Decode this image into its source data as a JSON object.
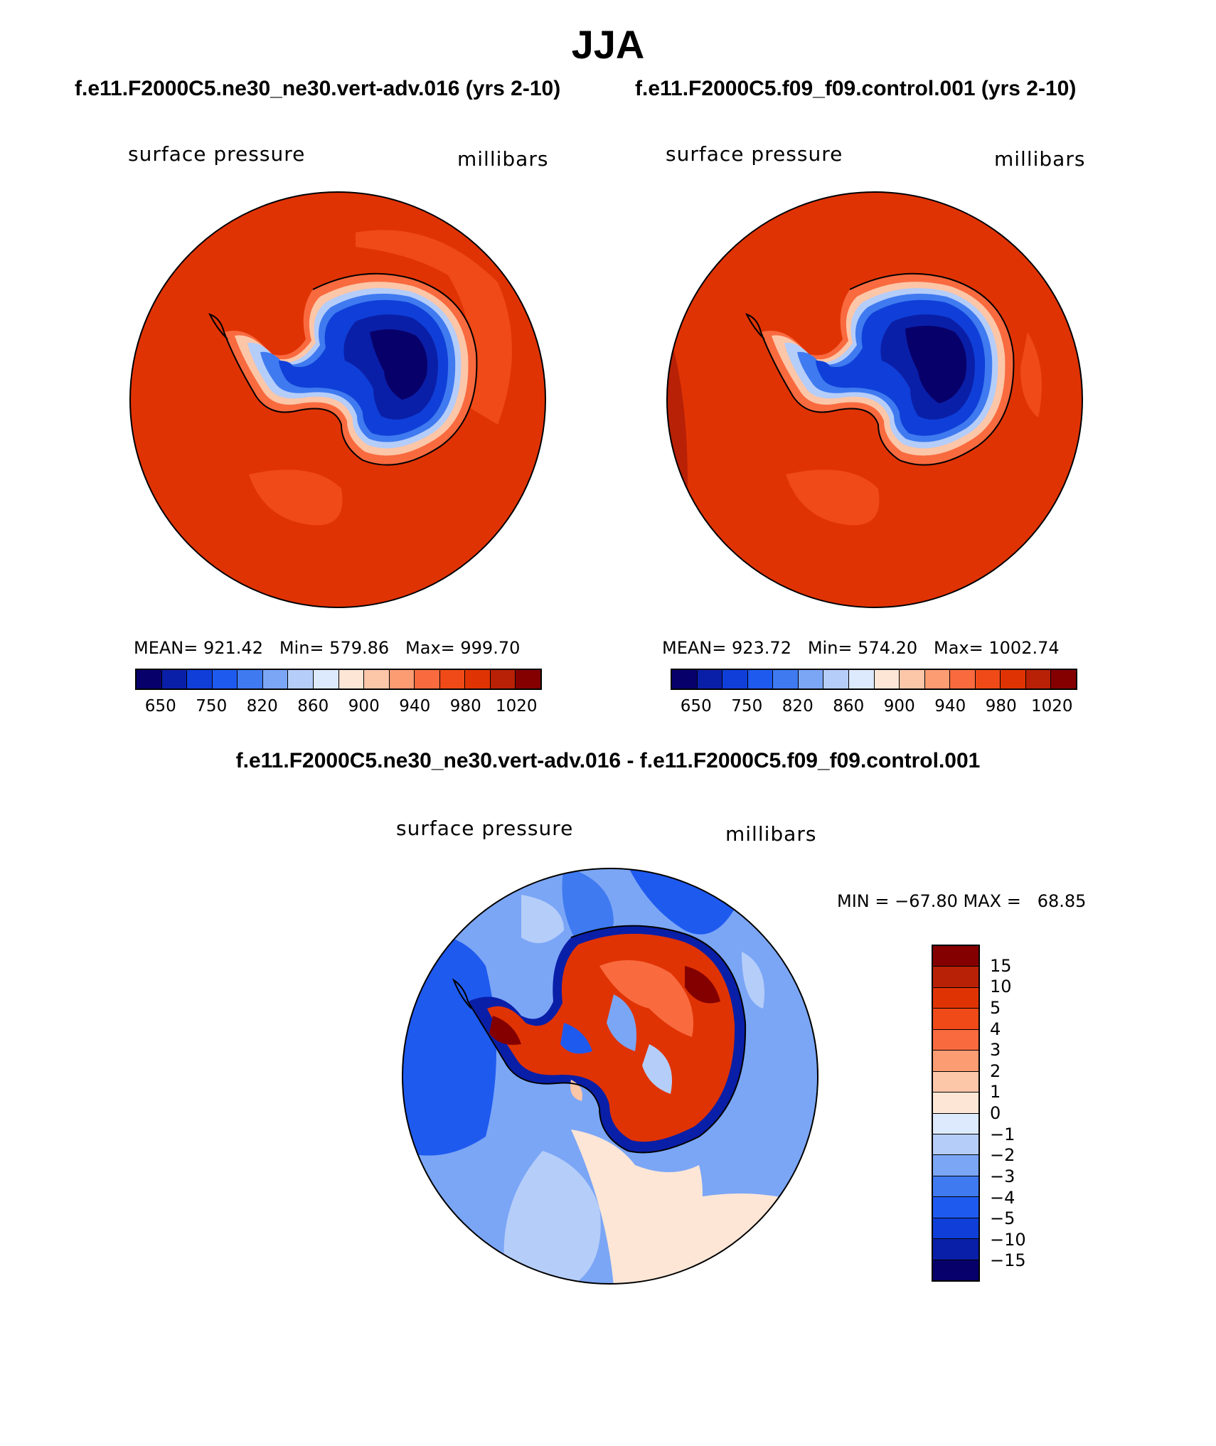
{
  "title": "JJA",
  "panels": [
    {
      "case_title": "f.e11.F2000C5.ne30_ne30.vert-adv.016 (yrs 2-10)",
      "variable": "surface pressure",
      "units": "millibars",
      "stats": "MEAN= 921.42   Min= 579.86   Max= 999.70",
      "colorbar_ticks": [
        "650",
        "750",
        "820",
        "860",
        "900",
        "940",
        "980",
        "1020"
      ]
    },
    {
      "case_title": "f.e11.F2000C5.f09_f09.control.001 (yrs 2-10)",
      "variable": "surface pressure",
      "units": "millibars",
      "stats": "MEAN= 923.72   Min= 574.20   Max= 1002.74",
      "colorbar_ticks": [
        "650",
        "750",
        "820",
        "860",
        "900",
        "940",
        "980",
        "1020"
      ]
    }
  ],
  "difference": {
    "title": "f.e11.F2000C5.ne30_ne30.vert-adv.016 - f.e11.F2000C5.f09_f09.control.001",
    "variable": "surface pressure",
    "units": "millibars",
    "minmax": "MIN = −67.80 MAX =   68.85",
    "colorbar_labels": [
      "15",
      "10",
      "5",
      "4",
      "3",
      "2",
      "1",
      "0",
      "−1",
      "−2",
      "−3",
      "−4",
      "−5",
      "−10",
      "−15"
    ]
  },
  "colors": {
    "abs_scale": [
      "#08006a",
      "#0a1fa8",
      "#0f3fd8",
      "#1f5aef",
      "#3f7af0",
      "#7ba6f6",
      "#b5cdf9",
      "#dde9fc",
      "#fde6d6",
      "#fcc6a8",
      "#fb9c73",
      "#f96a3f",
      "#ef4a18",
      "#e03303",
      "#b82106",
      "#840000"
    ],
    "diff_scale": [
      "#840000",
      "#b82106",
      "#e03303",
      "#ef4a18",
      "#f96a3f",
      "#fb9c73",
      "#fcc6a8",
      "#fde6d6",
      "#dde9fc",
      "#b5cdf9",
      "#7ba6f6",
      "#3f7af0",
      "#1f5aef",
      "#0f3fd8",
      "#0a1fa8",
      "#08006a"
    ]
  }
}
